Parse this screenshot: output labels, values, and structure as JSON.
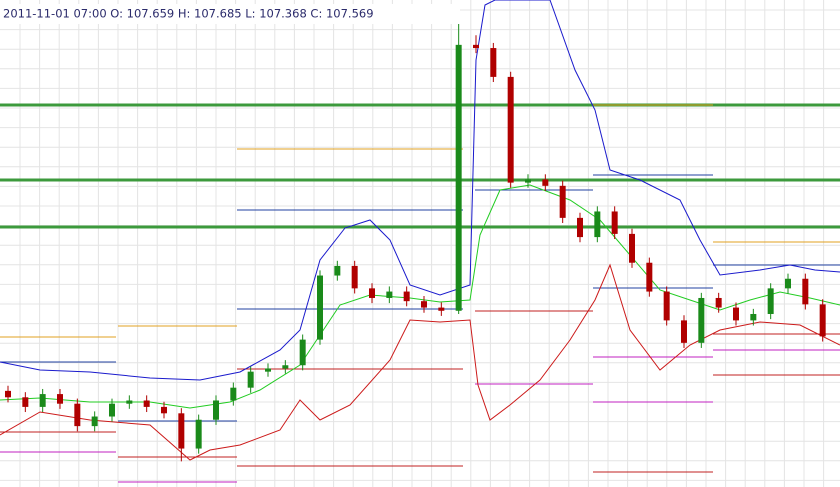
{
  "chart_data": {
    "type": "candlestick",
    "title": "2011-11-01 07:00 O: 107.659 H: 107.685 L: 107.368 C: 107.569",
    "ylim": [
      104.0,
      111.6
    ],
    "up_color": "#1a8a1a",
    "down_color": "#b00000",
    "open": [
      105.5,
      105.4,
      105.25,
      105.45,
      105.3,
      104.95,
      105.1,
      105.3,
      105.35,
      105.25,
      105.15,
      104.6,
      105.05,
      105.35,
      105.55,
      105.8,
      105.85,
      105.9,
      106.3,
      107.3,
      107.45,
      107.1,
      106.95,
      107.05,
      106.9,
      106.8,
      106.75,
      110.9,
      110.85,
      110.4,
      108.75,
      108.8,
      108.7,
      108.2,
      107.9,
      108.3,
      107.95,
      107.5,
      107.05,
      106.6,
      106.25,
      106.95,
      106.8,
      106.6,
      106.7,
      107.1,
      107.25,
      106.85
    ],
    "high": [
      105.58,
      105.48,
      105.53,
      105.53,
      105.38,
      105.18,
      105.38,
      105.43,
      105.43,
      105.33,
      105.23,
      105.13,
      105.43,
      105.63,
      105.88,
      105.93,
      105.98,
      106.38,
      107.38,
      107.53,
      107.53,
      107.18,
      107.13,
      107.13,
      106.98,
      106.88,
      111.4,
      111.05,
      110.93,
      110.48,
      108.88,
      108.88,
      108.78,
      108.28,
      108.38,
      108.38,
      108.03,
      107.58,
      107.13,
      106.68,
      107.03,
      107.03,
      106.88,
      106.78,
      107.18,
      107.33,
      107.33,
      106.93
    ],
    "low": [
      105.32,
      105.17,
      105.17,
      105.22,
      104.87,
      104.87,
      105.02,
      105.22,
      105.17,
      105.07,
      104.4,
      104.52,
      104.97,
      105.27,
      105.47,
      105.72,
      105.77,
      105.82,
      106.22,
      107.22,
      107.02,
      106.87,
      106.87,
      106.82,
      106.72,
      106.67,
      106.7,
      110.77,
      110.32,
      108.67,
      108.67,
      108.62,
      108.12,
      107.82,
      107.82,
      107.87,
      107.42,
      106.97,
      106.52,
      106.17,
      106.17,
      106.72,
      106.52,
      106.52,
      106.62,
      107.02,
      106.77,
      106.27
    ],
    "close": [
      105.4,
      105.25,
      105.45,
      105.3,
      104.95,
      105.1,
      105.3,
      105.35,
      105.25,
      105.15,
      104.6,
      105.05,
      105.35,
      105.55,
      105.8,
      105.85,
      105.9,
      106.3,
      107.3,
      107.45,
      107.1,
      106.95,
      107.05,
      106.9,
      106.8,
      106.75,
      110.9,
      110.85,
      110.4,
      108.75,
      108.8,
      108.7,
      108.2,
      107.9,
      108.3,
      107.95,
      107.5,
      107.05,
      106.6,
      106.25,
      106.95,
      106.8,
      106.6,
      106.7,
      107.1,
      107.25,
      106.85,
      106.35
    ]
  }
}
